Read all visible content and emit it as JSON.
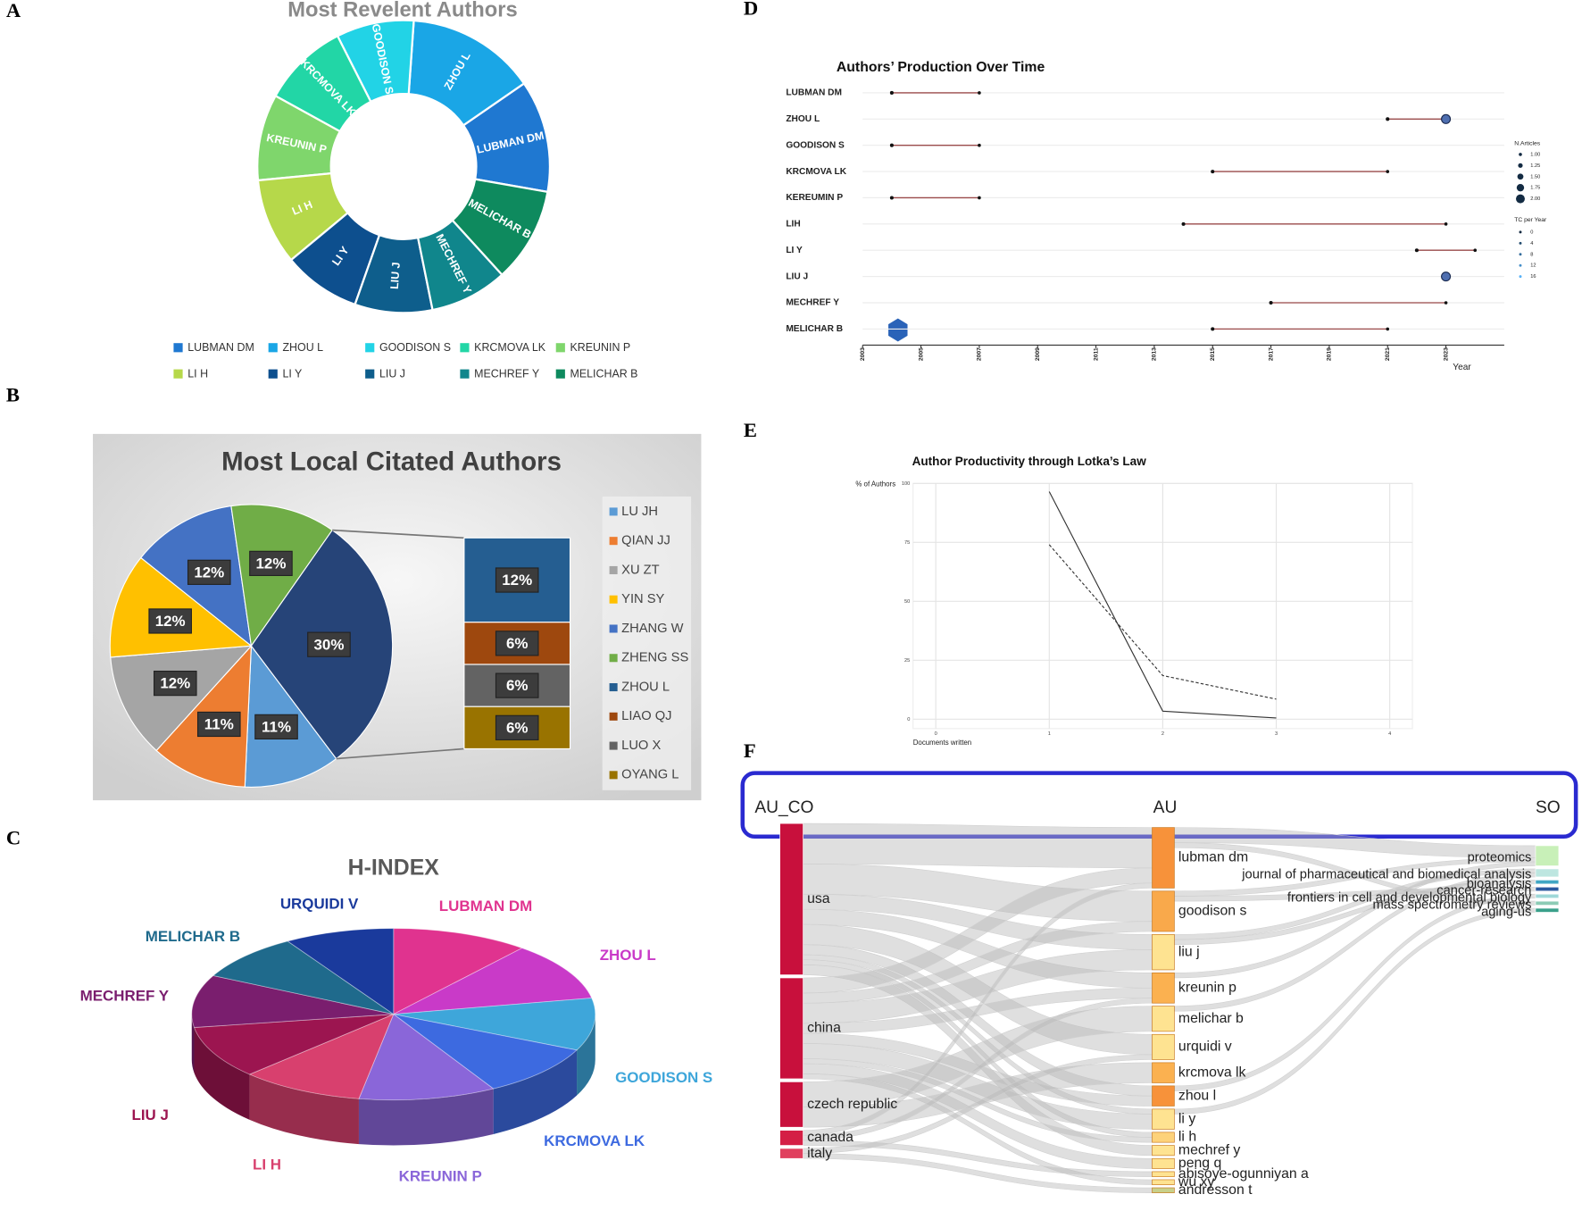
{
  "chart_data": [
    {
      "type": "donut",
      "panel": "A",
      "title": "Most Revelent Authors",
      "categories": [
        "LUBMAN DM",
        "ZHOU L",
        "GOODISON S",
        "KRCMOVA LK",
        "KREUNIN P",
        "LI H",
        "LI Y",
        "LIU J",
        "MECHREF Y",
        "MELICHAR B"
      ],
      "values": [
        13,
        15,
        9,
        10,
        10,
        10,
        9,
        9,
        9,
        11
      ],
      "colors": [
        "#1f78d1",
        "#1aa6e6",
        "#22d3e6",
        "#22d6a6",
        "#7fd66c",
        "#b6d84a",
        "#0d4f8e",
        "#0e5e8c",
        "#10868c",
        "#0e8a5e"
      ],
      "legend": "bottom"
    },
    {
      "type": "pie_of_pie",
      "panel": "B",
      "title": "Most Local Citated Authors",
      "categories": [
        "LU JH",
        "QIAN JJ",
        "XU ZT",
        "YIN SY",
        "ZHANG W",
        "ZHENG SS",
        "ZHOU L",
        "LIAO QJ",
        "LUO X",
        "OYANG L"
      ],
      "values": [
        11,
        11,
        12,
        12,
        12,
        12,
        12,
        6,
        6,
        6
      ],
      "value_labels": [
        "11%",
        "11%",
        "12%",
        "12%",
        "12%",
        "12%",
        "12%",
        "6%",
        "6%",
        "6%"
      ],
      "colors": [
        "#5b9bd5",
        "#ed7d31",
        "#a5a5a5",
        "#ffc000",
        "#4472c4",
        "#70ad47",
        "#255e91",
        "#9e480e",
        "#636363",
        "#997300"
      ],
      "second_plot_count": 4,
      "other": {
        "value": 30,
        "label": "30%",
        "color": "#264478"
      },
      "legend": "right"
    },
    {
      "type": "pie3d",
      "panel": "C",
      "title": "H-INDEX",
      "categories": [
        "LUBMAN DM",
        "ZHOU L",
        "GOODISON S",
        "KRCMOVA LK",
        "KREUNIN P",
        "LI H",
        "LIU J",
        "MECHREF Y",
        "MELICHAR B",
        "URQUIDI V"
      ],
      "values": [
        10,
        10,
        9,
        9,
        10,
        9,
        9,
        9,
        8,
        8
      ],
      "colors": [
        "#e0338f",
        "#c93ac8",
        "#3ea6da",
        "#3d6ae0",
        "#8a66d9",
        "#d8406e",
        "#9c1550",
        "#7a1e6e",
        "#1f6a8c",
        "#1a3a9c"
      ]
    },
    {
      "type": "timeline",
      "panel": "D",
      "title": "Authors’ Production Over Time",
      "x_label": "Year",
      "categories": [
        "LUBMAN DM",
        "ZHOU L",
        "GOODISON S",
        "KRCMOVA LK",
        "KEREUMIN P",
        "LIH",
        "LI Y",
        "LIU J",
        "MECHREF Y",
        "MELICHAR B"
      ],
      "start": [
        2004,
        2021,
        2004,
        2015,
        2004,
        2014,
        2022,
        2023,
        2017,
        2015
      ],
      "end": [
        2007,
        2023,
        2007,
        2021,
        2007,
        2023,
        2024,
        2023,
        2023,
        2021
      ],
      "end_articles": [
        1,
        2,
        1,
        1,
        1,
        1,
        1,
        2,
        1,
        1
      ],
      "line_color": "#9a4a4a",
      "point_color": "#4f6fb0",
      "xlim": [
        2003,
        2025
      ],
      "xticks": [
        2003,
        2005,
        2007,
        2009,
        2011,
        2013,
        2015,
        2017,
        2019,
        2021,
        2023
      ],
      "size_legend": {
        "title": "N.Articles",
        "ticks": [
          {
            "value": 1,
            "label": "1.00"
          },
          {
            "value": 1.25,
            "label": "1.25"
          },
          {
            "value": 1.5,
            "label": "1.50"
          },
          {
            "value": 1.75,
            "label": "1.75"
          },
          {
            "value": 2,
            "label": "2.00"
          }
        ]
      },
      "color_legend": {
        "title": "TC per Year",
        "ticks": [
          0,
          4,
          8,
          12,
          16
        ],
        "colors": [
          "#132b43",
          "#56b1f7"
        ]
      }
    },
    {
      "type": "line",
      "panel": "E",
      "title": "Author Productivity through Lotka’s Law",
      "x_label": "Documents written",
      "y_label": "% of Authors",
      "x": [
        1,
        2,
        3
      ],
      "series": [
        {
          "color": "#333333",
          "dash": false,
          "values": [
            96.5,
            3.4,
            0.5
          ]
        },
        {
          "color": "#333333",
          "dash": true,
          "values": [
            74,
            18.5,
            8.5
          ]
        }
      ],
      "xlim": [
        -0.2,
        4.2
      ],
      "xticks": [
        0,
        1,
        2,
        3,
        4
      ],
      "ylim": [
        -4,
        100
      ],
      "yticks": [
        0,
        25,
        50,
        75,
        100
      ],
      "grid": true
    },
    {
      "type": "sankey",
      "panel": "F",
      "columns": [
        {
          "name": "AU_CO",
          "nodes": [
            "usa",
            "china",
            "czech republic",
            "canada",
            "italy"
          ],
          "values": [
            30,
            20,
            9,
            3,
            2
          ],
          "colors": [
            "#c8103c",
            "#c8103c",
            "#c8103c",
            "#d41f45",
            "#e0405e"
          ]
        },
        {
          "name": "AU",
          "nodes": [
            "lubman dm",
            "goodison s",
            "liu j",
            "kreunin p",
            "melichar b",
            "urquidi v",
            "krcmova lk",
            "zhou l",
            "li y",
            "li h",
            "mechref y",
            "peng q",
            "abisoye-ogunniyan a",
            "wu xy",
            "andresson t"
          ],
          "values": [
            12,
            8,
            7,
            6,
            5,
            5,
            4,
            4,
            4,
            2,
            2,
            2,
            1,
            1,
            1
          ],
          "colors": [
            "#f7923a",
            "#f9a94b",
            "#fee391",
            "#fbb150",
            "#fee391",
            "#fee391",
            "#fbb150",
            "#f7923a",
            "#fee391",
            "#fdd27a",
            "#fee391",
            "#fee391",
            "#fee391",
            "#fee391",
            "#c8d08a"
          ]
        },
        {
          "name": "SO",
          "nodes": [
            "proteomics",
            "journal of pharmaceutical and biomedical analysis",
            "bioanalysis",
            "cancer-research",
            "frontiers in cell and developmental biology",
            "mass spectrometry reviews",
            "aging-us"
          ],
          "values": [
            5,
            2,
            1,
            1,
            1,
            1,
            1
          ],
          "colors": [
            "#c8f0b8",
            "#bde6e0",
            "#41a6c4",
            "#2c5aa0",
            "#9fd8d8",
            "#8ccbb5",
            "#3aa08a"
          ]
        }
      ],
      "links": [
        {
          "from": "usa",
          "to": "lubman dm",
          "value": 8
        },
        {
          "from": "usa",
          "to": "goodison s",
          "value": 6
        },
        {
          "from": "usa",
          "to": "liu j",
          "value": 3
        },
        {
          "from": "usa",
          "to": "kreunin p",
          "value": 3
        },
        {
          "from": "usa",
          "to": "urquidi v",
          "value": 4
        },
        {
          "from": "usa",
          "to": "zhou l",
          "value": 2
        },
        {
          "from": "usa",
          "to": "li y",
          "value": 1
        },
        {
          "from": "usa",
          "to": "li h",
          "value": 1
        },
        {
          "from": "usa",
          "to": "mechref y",
          "value": 2
        },
        {
          "from": "china",
          "to": "lubman dm",
          "value": 3
        },
        {
          "from": "china",
          "to": "goodison s",
          "value": 2
        },
        {
          "from": "china",
          "to": "liu j",
          "value": 4
        },
        {
          "from": "china",
          "to": "kreunin p",
          "value": 2
        },
        {
          "from": "china",
          "to": "zhou l",
          "value": 2
        },
        {
          "from": "china",
          "to": "li y",
          "value": 3
        },
        {
          "from": "china",
          "to": "li h",
          "value": 1
        },
        {
          "from": "china",
          "to": "peng q",
          "value": 2
        },
        {
          "from": "china",
          "to": "wu xy",
          "value": 1
        },
        {
          "from": "czech republic",
          "to": "melichar b",
          "value": 5
        },
        {
          "from": "czech republic",
          "to": "krcmova lk",
          "value": 4
        },
        {
          "from": "canada",
          "to": "lubman dm",
          "value": 1
        },
        {
          "from": "canada",
          "to": "kreunin p",
          "value": 1
        },
        {
          "from": "canada",
          "to": "abisoye-ogunniyan a",
          "value": 1
        },
        {
          "from": "italy",
          "to": "urquidi v",
          "value": 1
        },
        {
          "from": "italy",
          "to": "andresson t",
          "value": 1
        },
        {
          "from": "lubman dm",
          "to": "proteomics",
          "value": 3
        },
        {
          "from": "lubman dm",
          "to": "mass spectrometry reviews",
          "value": 1
        },
        {
          "from": "goodison s",
          "to": "proteomics",
          "value": 1
        },
        {
          "from": "goodison s",
          "to": "cancer-research",
          "value": 1
        },
        {
          "from": "liu j",
          "to": "journal of pharmaceutical and biomedical analysis",
          "value": 1
        },
        {
          "from": "liu j",
          "to": "bioanalysis",
          "value": 1
        },
        {
          "from": "kreunin p",
          "to": "proteomics",
          "value": 1
        },
        {
          "from": "melichar b",
          "to": "journal of pharmaceutical and biomedical analysis",
          "value": 1
        },
        {
          "from": "zhou l",
          "to": "frontiers in cell and developmental biology",
          "value": 1
        },
        {
          "from": "li y",
          "to": "aging-us",
          "value": 1
        }
      ]
    }
  ]
}
